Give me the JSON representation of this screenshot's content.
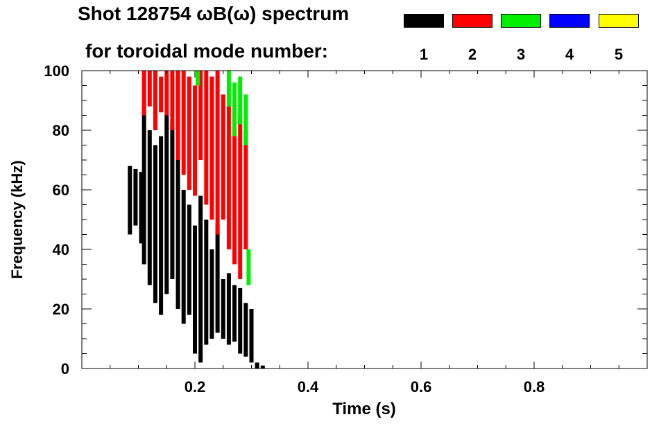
{
  "title": {
    "line1": "Shot 128754 ωB(ω) spectrum",
    "line2": "for toroidal mode number:"
  },
  "legend": [
    {
      "label": "1",
      "color": "#000000"
    },
    {
      "label": "2",
      "color": "#ff0000"
    },
    {
      "label": "3",
      "color": "#00ee00"
    },
    {
      "label": "4",
      "color": "#0000ff"
    },
    {
      "label": "5",
      "color": "#ffff00"
    }
  ],
  "chart_data": {
    "type": "heatmap",
    "xlabel": "Time (s)",
    "ylabel": "Frequency (kHz)",
    "xlim": [
      0.0,
      1.0
    ],
    "ylim": [
      0,
      100
    ],
    "xticks": [
      "0.2",
      "0.4",
      "0.6",
      "0.8"
    ],
    "yticks": [
      "0",
      "20",
      "40",
      "60",
      "80",
      "100"
    ],
    "series": [
      {
        "name": "1",
        "color": "#000000",
        "segments": [
          {
            "t": 0.085,
            "f0": 45,
            "f1": 68
          },
          {
            "t": 0.095,
            "f0": 48,
            "f1": 67
          },
          {
            "t": 0.105,
            "f0": 42,
            "f1": 66
          },
          {
            "t": 0.11,
            "f0": 35,
            "f1": 88
          },
          {
            "t": 0.12,
            "f0": 28,
            "f1": 80
          },
          {
            "t": 0.13,
            "f0": 22,
            "f1": 75
          },
          {
            "t": 0.14,
            "f0": 18,
            "f1": 78
          },
          {
            "t": 0.15,
            "f0": 25,
            "f1": 85
          },
          {
            "t": 0.16,
            "f0": 30,
            "f1": 82
          },
          {
            "t": 0.17,
            "f0": 20,
            "f1": 70
          },
          {
            "t": 0.18,
            "f0": 15,
            "f1": 60
          },
          {
            "t": 0.19,
            "f0": 18,
            "f1": 55
          },
          {
            "t": 0.2,
            "f0": 5,
            "f1": 48
          },
          {
            "t": 0.21,
            "f0": 2,
            "f1": 58
          },
          {
            "t": 0.22,
            "f0": 8,
            "f1": 50
          },
          {
            "t": 0.23,
            "f0": 10,
            "f1": 40
          },
          {
            "t": 0.24,
            "f0": 12,
            "f1": 48
          },
          {
            "t": 0.25,
            "f0": 10,
            "f1": 30
          },
          {
            "t": 0.26,
            "f0": 8,
            "f1": 32
          },
          {
            "t": 0.27,
            "f0": 9,
            "f1": 28
          },
          {
            "t": 0.28,
            "f0": 5,
            "f1": 27
          },
          {
            "t": 0.29,
            "f0": 4,
            "f1": 22
          },
          {
            "t": 0.3,
            "f0": 2,
            "f1": 20
          },
          {
            "t": 0.31,
            "f0": 0,
            "f1": 2
          },
          {
            "t": 0.32,
            "f0": 0,
            "f1": 1
          }
        ]
      },
      {
        "name": "2",
        "color": "#ff0000",
        "segments": [
          {
            "t": 0.11,
            "f0": 85,
            "f1": 100
          },
          {
            "t": 0.12,
            "f0": 88,
            "f1": 100
          },
          {
            "t": 0.13,
            "f0": 80,
            "f1": 100
          },
          {
            "t": 0.14,
            "f0": 86,
            "f1": 98
          },
          {
            "t": 0.15,
            "f0": 85,
            "f1": 100
          },
          {
            "t": 0.16,
            "f0": 80,
            "f1": 100
          },
          {
            "t": 0.17,
            "f0": 70,
            "f1": 100
          },
          {
            "t": 0.18,
            "f0": 65,
            "f1": 100
          },
          {
            "t": 0.19,
            "f0": 60,
            "f1": 98
          },
          {
            "t": 0.2,
            "f0": 58,
            "f1": 95
          },
          {
            "t": 0.21,
            "f0": 70,
            "f1": 100
          },
          {
            "t": 0.22,
            "f0": 55,
            "f1": 100
          },
          {
            "t": 0.23,
            "f0": 50,
            "f1": 98
          },
          {
            "t": 0.24,
            "f0": 45,
            "f1": 100
          },
          {
            "t": 0.25,
            "f0": 50,
            "f1": 92
          },
          {
            "t": 0.26,
            "f0": 40,
            "f1": 88
          },
          {
            "t": 0.27,
            "f0": 35,
            "f1": 90
          },
          {
            "t": 0.28,
            "f0": 30,
            "f1": 85
          },
          {
            "t": 0.29,
            "f0": 40,
            "f1": 80
          }
        ]
      },
      {
        "name": "3",
        "color": "#00ee00",
        "segments": [
          {
            "t": 0.205,
            "f0": 95,
            "f1": 100
          },
          {
            "t": 0.26,
            "f0": 88,
            "f1": 100
          },
          {
            "t": 0.27,
            "f0": 78,
            "f1": 96
          },
          {
            "t": 0.28,
            "f0": 82,
            "f1": 98
          },
          {
            "t": 0.29,
            "f0": 75,
            "f1": 92
          },
          {
            "t": 0.295,
            "f0": 28,
            "f1": 40
          }
        ]
      },
      {
        "name": "4",
        "color": "#0000ff",
        "segments": []
      },
      {
        "name": "5",
        "color": "#ffff00",
        "segments": []
      }
    ],
    "grid": false,
    "legend_position": "top-right"
  }
}
